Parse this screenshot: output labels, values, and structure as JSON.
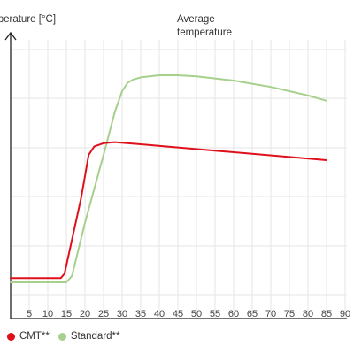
{
  "chart_data": {
    "type": "line",
    "ylabel": "Temperature [°C]",
    "annotation": "Average temperature",
    "xlim": [
      0,
      90
    ],
    "x_ticks": [
      5,
      10,
      15,
      20,
      25,
      30,
      35,
      40,
      45,
      50,
      55,
      60,
      65,
      70,
      75,
      80,
      85,
      90
    ],
    "grid": true,
    "legend_position": "bottom-left",
    "series": [
      {
        "name": "CMT**",
        "color": "#e0101b",
        "x": [
          0,
          13.5,
          14.5,
          19,
          21,
          22.5,
          25,
          28,
          35,
          45,
          55,
          65,
          75,
          85
        ],
        "y": [
          2,
          2,
          4,
          40,
          60,
          64,
          65.5,
          66,
          65,
          63.5,
          62,
          60.5,
          59,
          57.5
        ]
      },
      {
        "name": "Standard**",
        "color": "#a6d08c",
        "x": [
          0,
          15,
          16.5,
          20,
          25,
          28,
          30,
          31.5,
          33,
          35,
          40,
          45,
          50,
          55,
          60,
          65,
          70,
          75,
          80,
          85
        ],
        "y": [
          0,
          0,
          3,
          28,
          60,
          80,
          90,
          94,
          95.5,
          96.5,
          97.5,
          97.5,
          97,
          96,
          95,
          93.5,
          92,
          90,
          88,
          85.5
        ]
      }
    ]
  }
}
